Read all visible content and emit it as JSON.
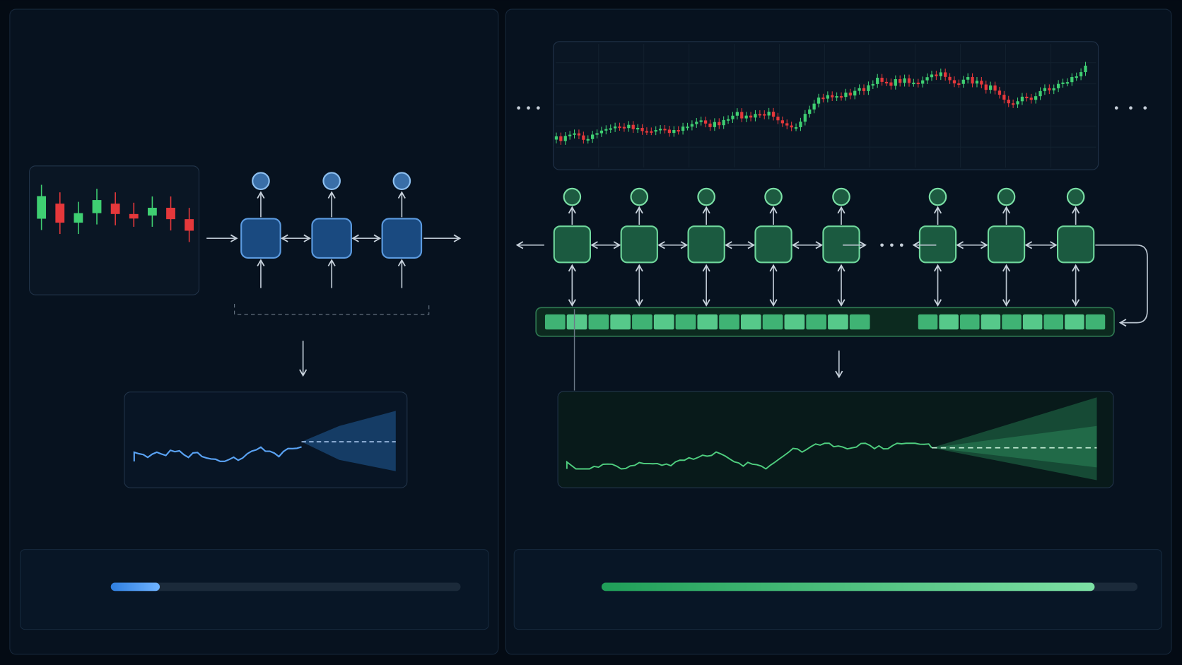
{
  "panels": [
    {
      "progress": 14
    },
    {
      "progress": 92
    }
  ]
}
